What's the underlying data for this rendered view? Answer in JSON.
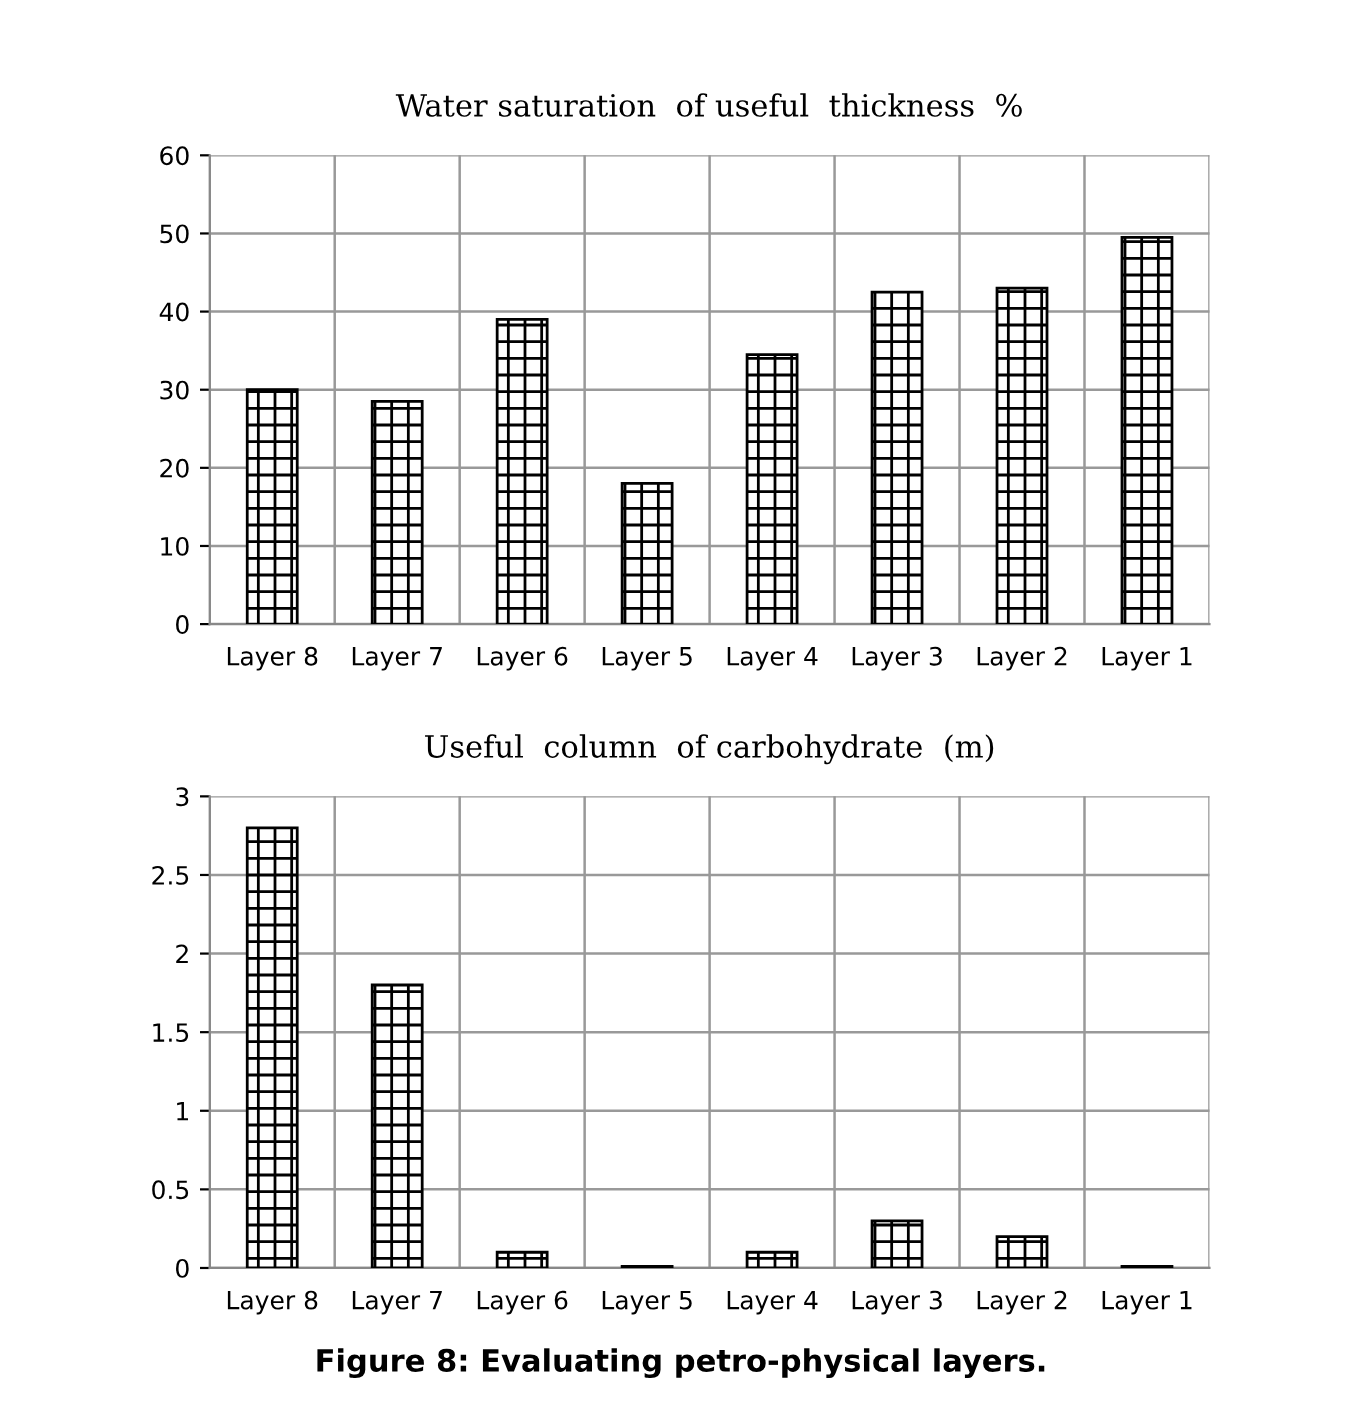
{
  "chart_data": [
    {
      "type": "bar",
      "title": "Water saturation  of useful  thickness  %",
      "categories": [
        "Layer 8",
        "Layer 7",
        "Layer 6",
        "Layer 5",
        "Layer 4",
        "Layer 3",
        "Layer 2",
        "Layer 1"
      ],
      "values": [
        30,
        28.5,
        39,
        18,
        34.5,
        42.5,
        43,
        49.5
      ],
      "color": "#000000",
      "ylim": [
        0,
        60
      ],
      "yticks": [
        0,
        10,
        20,
        30,
        40,
        50,
        60
      ],
      "grid": true
    },
    {
      "type": "bar",
      "title": "Useful  column  of carbohydrate  (m)",
      "categories": [
        "Layer 8",
        "Layer 7",
        "Layer 6",
        "Layer 5",
        "Layer 4",
        "Layer 3",
        "Layer 2",
        "Layer 1"
      ],
      "values": [
        2.8,
        1.8,
        0.1,
        0.01,
        0.1,
        0.3,
        0.2,
        0.01
      ],
      "color": "#000000",
      "ylim": [
        0,
        3
      ],
      "yticks": [
        0,
        0.5,
        1,
        1.5,
        2,
        2.5,
        3
      ],
      "grid": true,
      "annotations": [
        "Figure 8: Evaluating petro-physical layers."
      ]
    }
  ]
}
